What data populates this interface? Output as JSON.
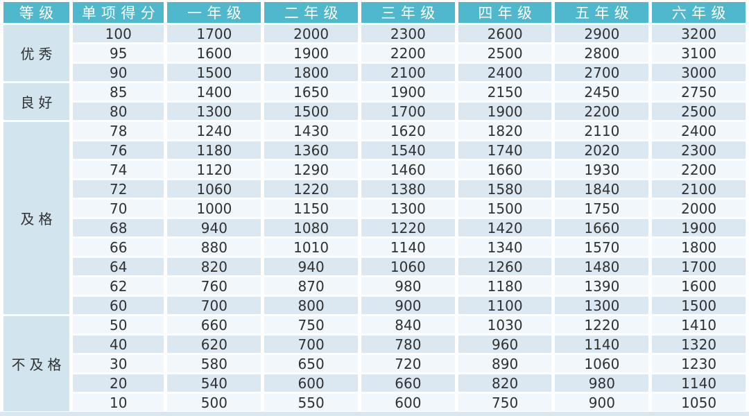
{
  "table": {
    "columns": [
      "等级",
      "单项得分",
      "一年级",
      "二年级",
      "三年级",
      "四年级",
      "五年级",
      "六年级"
    ],
    "groups": [
      {
        "label": "优秀",
        "rows": [
          [
            "100",
            "1700",
            "2000",
            "2300",
            "2600",
            "2900",
            "3200"
          ],
          [
            "95",
            "1600",
            "1900",
            "2200",
            "2500",
            "2800",
            "3100"
          ],
          [
            "90",
            "1500",
            "1800",
            "2100",
            "2400",
            "2700",
            "3000"
          ]
        ]
      },
      {
        "label": "良好",
        "rows": [
          [
            "85",
            "1400",
            "1650",
            "1900",
            "2150",
            "2450",
            "2750"
          ],
          [
            "80",
            "1300",
            "1500",
            "1700",
            "1900",
            "2200",
            "2500"
          ]
        ]
      },
      {
        "label": "及格",
        "rows": [
          [
            "78",
            "1240",
            "1430",
            "1620",
            "1820",
            "2110",
            "2400"
          ],
          [
            "76",
            "1180",
            "1360",
            "1540",
            "1740",
            "2020",
            "2300"
          ],
          [
            "74",
            "1120",
            "1290",
            "1460",
            "1660",
            "1930",
            "2200"
          ],
          [
            "72",
            "1060",
            "1220",
            "1380",
            "1580",
            "1840",
            "2100"
          ],
          [
            "70",
            "1000",
            "1150",
            "1300",
            "1500",
            "1750",
            "2000"
          ],
          [
            "68",
            "940",
            "1080",
            "1220",
            "1420",
            "1660",
            "1900"
          ],
          [
            "66",
            "880",
            "1010",
            "1140",
            "1340",
            "1570",
            "1800"
          ],
          [
            "64",
            "820",
            "940",
            "1060",
            "1260",
            "1480",
            "1700"
          ],
          [
            "62",
            "760",
            "870",
            "980",
            "1180",
            "1390",
            "1600"
          ],
          [
            "60",
            "700",
            "800",
            "900",
            "1100",
            "1300",
            "1500"
          ]
        ]
      },
      {
        "label": "不及格",
        "rows": [
          [
            "50",
            "660",
            "750",
            "840",
            "1030",
            "1220",
            "1410"
          ],
          [
            "40",
            "620",
            "700",
            "780",
            "960",
            "1140",
            "1320"
          ],
          [
            "30",
            "580",
            "650",
            "720",
            "890",
            "1060",
            "1230"
          ],
          [
            "20",
            "540",
            "600",
            "660",
            "820",
            "980",
            "1140"
          ],
          [
            "10",
            "500",
            "550",
            "600",
            "750",
            "900",
            "1050"
          ]
        ]
      }
    ]
  },
  "colors": {
    "header_bg": "#50b8cc",
    "header_text": "#ffffff",
    "row_stripe_dark": "#dbe8f1",
    "row_stripe_light": "#f1f7fa",
    "group_cell_bg": "#d2e4ee",
    "cell_text": "#303030",
    "bottom_strip": "#d9e7f0"
  }
}
